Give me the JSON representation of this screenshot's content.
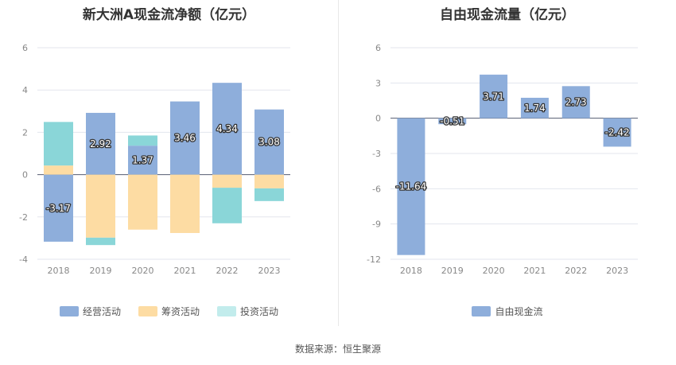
{
  "chart_data": [
    {
      "type": "bar",
      "stacked": true,
      "title": "新大洲A现金流净额（亿元）",
      "categories": [
        "2018",
        "2019",
        "2020",
        "2021",
        "2022",
        "2023"
      ],
      "ylim": [
        -4,
        6
      ],
      "yticks": [
        "-4",
        "-2",
        "0",
        "2",
        "4",
        "6"
      ],
      "legend_position": "bottom",
      "series": [
        {
          "name": "经营活动",
          "color": "#8eaedb",
          "values": [
            -3.17,
            2.92,
            1.37,
            3.46,
            4.34,
            3.08
          ],
          "labels": [
            "-3.17",
            "2.92",
            "1.37",
            "3.46",
            "4.34",
            "3.08"
          ]
        },
        {
          "name": "筹资活动",
          "color": "#fddca3",
          "values": [
            0.43,
            -2.98,
            -2.6,
            -2.76,
            -0.62,
            -0.65
          ],
          "labels": []
        },
        {
          "name": "投资活动",
          "color": "#8ad6d8",
          "values": [
            2.06,
            -0.35,
            0.48,
            0.0,
            -1.68,
            -0.6
          ],
          "labels": []
        }
      ]
    },
    {
      "type": "bar",
      "title": "自由现金流量（亿元）",
      "categories": [
        "2018",
        "2019",
        "2020",
        "2021",
        "2022",
        "2023"
      ],
      "ylim": [
        -12,
        6
      ],
      "yticks": [
        "-12",
        "-9",
        "-6",
        "-3",
        "0",
        "3",
        "6"
      ],
      "legend_position": "bottom",
      "series": [
        {
          "name": "自由现金流",
          "color": "#8eaedb",
          "values": [
            -11.64,
            -0.51,
            3.71,
            1.74,
            2.73,
            -2.42
          ],
          "labels": [
            "-11.64",
            "-0.51",
            "3.71",
            "1.74",
            "2.73",
            "-2.42"
          ]
        }
      ]
    }
  ],
  "source": "数据来源：恒生聚源"
}
